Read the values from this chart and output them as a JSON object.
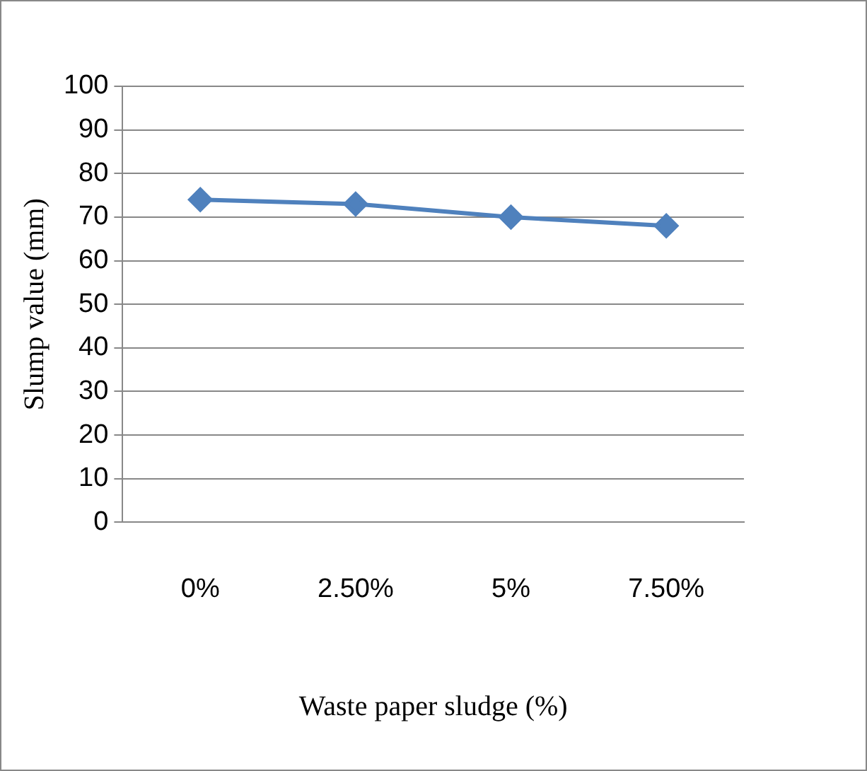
{
  "chart_data": {
    "type": "line",
    "xlabel": "Waste paper sludge (%)",
    "ylabel": "Slump value (mm)",
    "categories": [
      "0%",
      "2.50%",
      "5%",
      "7.50%"
    ],
    "series": [
      {
        "color": "#4f81bd",
        "values": [
          74,
          73,
          70,
          68
        ]
      }
    ],
    "ylim": [
      0,
      100
    ],
    "yticks": [
      0,
      10,
      20,
      30,
      40,
      50,
      60,
      70,
      80,
      90,
      100
    ],
    "grid": "y",
    "legend": false,
    "marker": "diamond",
    "line_style": "solid"
  }
}
